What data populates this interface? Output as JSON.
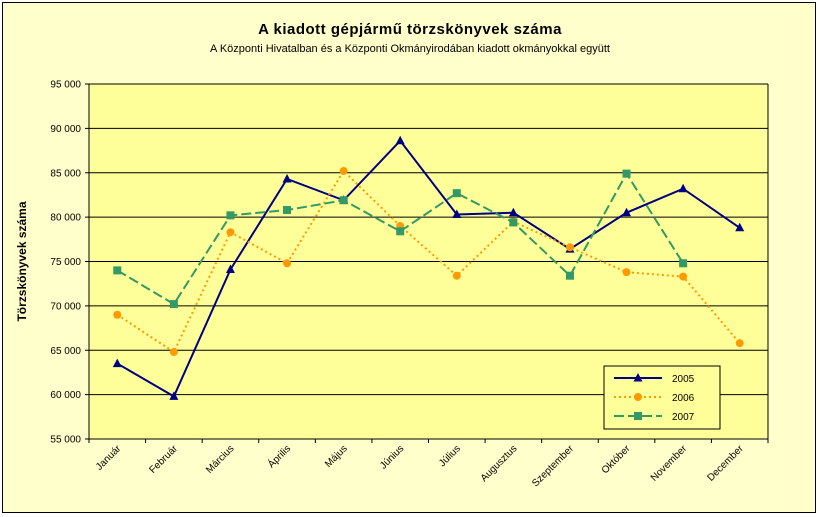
{
  "chart_data": {
    "type": "line",
    "title": "A  kiadott gépjármű  törzskönyvek száma",
    "subtitle": "A Központi Hivatalban és a Központi Okmányirodában kiadott okmányokkal együtt",
    "ylabel": "Törzskönyvek száma",
    "xlabel": "",
    "ylim": [
      55000,
      95000
    ],
    "ytick_step": 5000,
    "ytick_labels": [
      "55 000",
      "60 000",
      "65 000",
      "70 000",
      "75 000",
      "80 000",
      "85 000",
      "90 000",
      "95 000"
    ],
    "categories": [
      "Január",
      "Február",
      "Március",
      "Április",
      "Május",
      "Június",
      "Július",
      "Augusztus",
      "Szeptember",
      "Október",
      "November",
      "December"
    ],
    "grid": "horizontal",
    "legend_position": "bottom-right",
    "series": [
      {
        "name": "2005",
        "color": "#000080",
        "marker": "triangle",
        "dash": "solid",
        "values": [
          63500,
          59800,
          74100,
          84300,
          81900,
          88600,
          80300,
          80500,
          76400,
          80500,
          83200,
          78800
        ]
      },
      {
        "name": "2006",
        "color": "#ff9900",
        "marker": "diamond",
        "dash": "dotted",
        "values": [
          69000,
          64800,
          78300,
          74800,
          85200,
          79000,
          73400,
          79500,
          76600,
          73800,
          73300,
          65800
        ]
      },
      {
        "name": "2007",
        "color": "#339966",
        "marker": "square",
        "dash": "dashed",
        "values": [
          74000,
          70200,
          80200,
          80800,
          81900,
          78400,
          82700,
          79400,
          73400,
          84900,
          74800,
          null
        ]
      }
    ]
  }
}
